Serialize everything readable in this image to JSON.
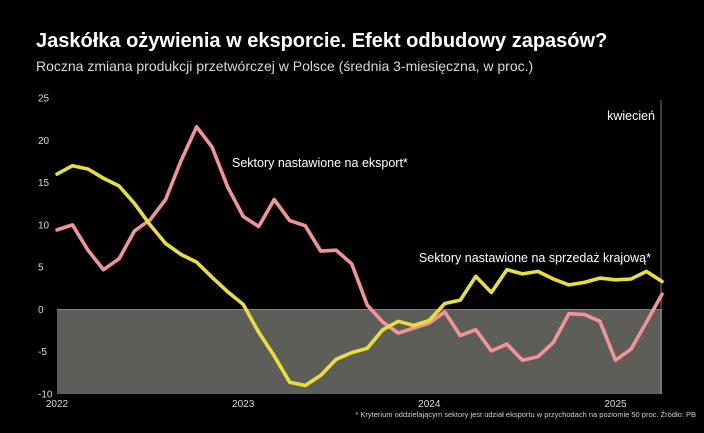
{
  "header": {
    "title": "Jaskółka ożywienia w eksporcie. Efekt odbudowy zapasów?",
    "subtitle": "Roczna zmiana produkcji przetwórczej w Polsce (średnia 3-miesięczna, w proc.)"
  },
  "footnote": "* Kryterium oddzielającym sektory jest udział eksportu w przychodach na poziomie 50 proc. Źródło: PB",
  "colors": {
    "export": "#f4929a",
    "domestic": "#e8df3c",
    "negative_area": "#5e5e58",
    "marker_line": "#9a9a9a"
  },
  "chart_data": {
    "type": "line",
    "x_start": "2022-01",
    "x_end": "2025-04",
    "ylim": [
      -10,
      25
    ],
    "yticks": [
      25,
      20,
      15,
      10,
      5,
      0,
      -5,
      -10
    ],
    "ytick_labels": [
      "25",
      "20",
      "15",
      "10",
      "5",
      "0",
      "-5",
      "-10"
    ],
    "xtick_labels": [
      "2022",
      "2023",
      "2024",
      "2025"
    ],
    "xtick_months": [
      0,
      12,
      24,
      36
    ],
    "marker": {
      "month_index": 39,
      "label": "kwiecień"
    },
    "series": [
      {
        "name": "Sektory nastawione na eksport*",
        "color": "#f4929a",
        "values": [
          9.4,
          10.0,
          7.0,
          4.7,
          6.0,
          9.3,
          10.6,
          13.0,
          17.6,
          21.6,
          19.2,
          14.5,
          11.0,
          9.8,
          13.0,
          10.5,
          9.9,
          6.9,
          7.0,
          5.4,
          0.5,
          -1.5,
          -2.8,
          -2.2,
          -1.6,
          -0.3,
          -3.1,
          -2.4,
          -4.9,
          -4.1,
          -6.0,
          -5.6,
          -3.9,
          -0.5,
          -0.6,
          -1.4,
          -6.0,
          -4.7,
          -1.5,
          1.8
        ]
      },
      {
        "name": "Sektory nastawione na sprzedaż krajową*",
        "color": "#e8df3c",
        "values": [
          16.0,
          17.0,
          16.6,
          15.5,
          14.6,
          12.5,
          10.0,
          7.8,
          6.5,
          5.6,
          3.8,
          2.1,
          0.6,
          -2.7,
          -5.5,
          -8.6,
          -9.0,
          -7.8,
          -5.9,
          -5.1,
          -4.6,
          -2.4,
          -1.4,
          -1.9,
          -1.3,
          0.7,
          1.1,
          3.9,
          2.0,
          4.7,
          4.2,
          4.5,
          3.6,
          2.9,
          3.2,
          3.7,
          3.5,
          3.6,
          4.5,
          3.3
        ]
      }
    ],
    "annotations": [
      {
        "text": "Sektory nastawione na eksport*",
        "series": 0
      },
      {
        "text": "Sektory nastawione na sprzedaż krajową*",
        "series": 1
      }
    ],
    "grid": false
  }
}
